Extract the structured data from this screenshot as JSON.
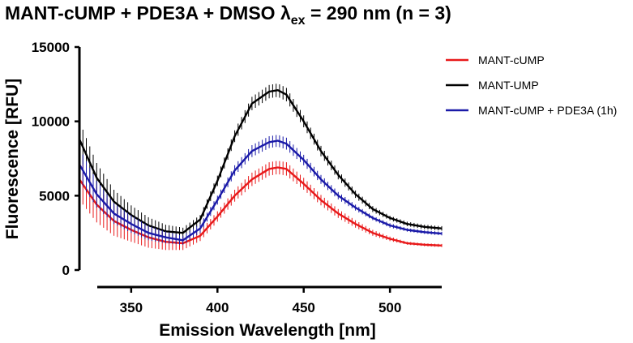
{
  "chart_data": {
    "type": "line",
    "title": {
      "main": "MANT-cUMP + PDE3A + DMSO ",
      "lambda": "λ",
      "subscript": "ex",
      "rest": " = 290 nm (n = 3)"
    },
    "xlabel": "Emission Wavelength [nm]",
    "ylabel": "Fluorescence [RFU]",
    "xlim": [
      320,
      530
    ],
    "ylim": [
      0,
      15000
    ],
    "xticks": [
      "350",
      "400",
      "450",
      "500"
    ],
    "yticks": [
      "0",
      "5000",
      "10000",
      "15000"
    ],
    "grid": false,
    "legend_position": "top-right",
    "x": [
      320,
      330,
      340,
      350,
      360,
      370,
      380,
      390,
      400,
      410,
      420,
      430,
      435,
      440,
      450,
      460,
      470,
      480,
      490,
      500,
      510,
      520,
      530
    ],
    "series": [
      {
        "name": "MANT-cUMP",
        "color": "#e8191a",
        "values": [
          6100,
          4400,
          3300,
          2700,
          2200,
          1900,
          1800,
          2300,
          3600,
          5000,
          6100,
          6800,
          6900,
          6800,
          5800,
          4700,
          3800,
          3100,
          2500,
          2100,
          1800,
          1700,
          1650
        ],
        "error": [
          1400,
          1200,
          1000,
          800,
          700,
          550,
          450,
          350,
          350,
          400,
          450,
          450,
          450,
          450,
          400,
          350,
          300,
          250,
          200,
          150,
          100,
          100,
          100
        ]
      },
      {
        "name": "MANT-UMP",
        "color": "#000000",
        "values": [
          8800,
          6200,
          4600,
          3700,
          3000,
          2600,
          2500,
          3400,
          6000,
          9000,
          11200,
          12000,
          12100,
          11800,
          10000,
          8000,
          6400,
          5100,
          4100,
          3500,
          3100,
          2900,
          2800
        ],
        "error": [
          1200,
          1000,
          800,
          650,
          550,
          450,
          350,
          300,
          350,
          400,
          450,
          450,
          450,
          450,
          400,
          350,
          300,
          250,
          200,
          150,
          150,
          150,
          150
        ]
      },
      {
        "name": "MANT-cUMP + PDE3A (1h)",
        "color": "#1a1aa8",
        "values": [
          7100,
          5100,
          3800,
          3100,
          2500,
          2200,
          2000,
          2800,
          4700,
          6700,
          8000,
          8600,
          8700,
          8500,
          7400,
          6100,
          5000,
          4200,
          3500,
          3000,
          2700,
          2550,
          2450
        ],
        "error": [
          1100,
          900,
          700,
          600,
          500,
          400,
          300,
          300,
          300,
          350,
          400,
          400,
          400,
          400,
          350,
          300,
          250,
          200,
          150,
          150,
          120,
          120,
          120
        ]
      }
    ]
  }
}
